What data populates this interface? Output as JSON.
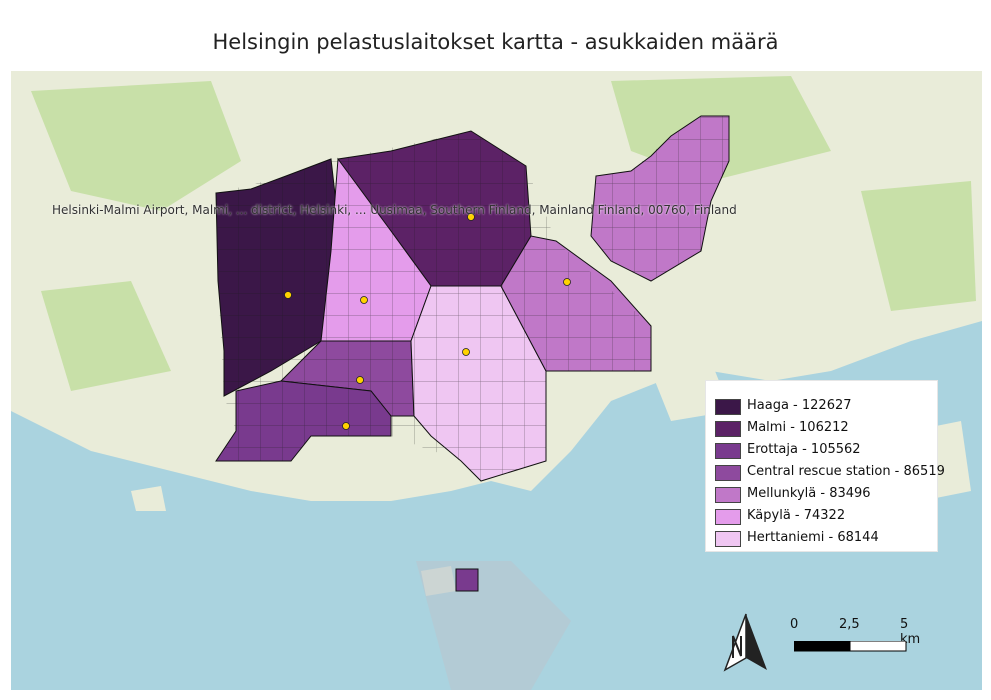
{
  "title": "Helsingin pelastuslaitokset kartta - asukkaiden määrä",
  "address_label": "Helsinki-Malmi Airport, Malmi, ... district, Helsinki, ... Uusimaa, Southern Finland, Mainland Finland, 00760, Finland",
  "legend": {
    "items": [
      {
        "label": "Haaga - 122627",
        "color": "#3b1748"
      },
      {
        "label": "Malmi - 106212",
        "color": "#5c2266"
      },
      {
        "label": "Erottaja - 105562",
        "color": "#793a8e"
      },
      {
        "label": "Central rescue station - 86519",
        "color": "#8e4a9e"
      },
      {
        "label": "Mellunkylä - 83496",
        "color": "#c078c8"
      },
      {
        "label": "Käpylä - 74322",
        "color": "#e49ceb"
      },
      {
        "label": "Herttaniemi - 68144",
        "color": "#efc6f2"
      }
    ]
  },
  "scale": {
    "labels": [
      "0",
      "2,5",
      "5 km"
    ]
  },
  "colors": {
    "sea": "#aad3df",
    "land": "#e9ecd9",
    "green": "#c8e0a8",
    "station_dot": "#ffd200"
  }
}
